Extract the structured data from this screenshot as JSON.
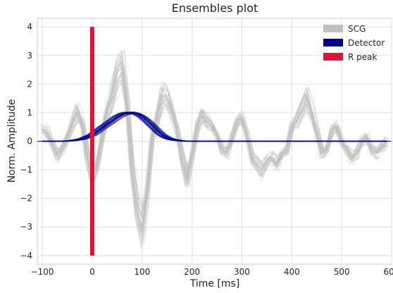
{
  "chart_data": {
    "type": "line",
    "title": "Ensembles plot",
    "xlabel": "Time [ms]",
    "ylabel": "Norm. Amplitude",
    "xlim": [
      -110,
      600
    ],
    "ylim": [
      -4.3,
      4.3
    ],
    "xticks": [
      -100,
      0,
      100,
      200,
      300,
      400,
      500,
      600
    ],
    "yticks": [
      -4,
      -3,
      -2,
      -1,
      0,
      1,
      2,
      3,
      4
    ],
    "xtick_labels": [
      "−100",
      "0",
      "100",
      "200",
      "300",
      "400",
      "500",
      "600"
    ],
    "ytick_labels": [
      "−4",
      "−3",
      "−2",
      "−1",
      "0",
      "1",
      "2",
      "3",
      "4"
    ],
    "grid": true,
    "legend_position": "top-right",
    "series": [
      {
        "name": "SCG",
        "color": "#c0c0c0",
        "style": "ensemble",
        "ensemble_count": 30,
        "x": [
          -100,
          -90,
          -80,
          -70,
          -60,
          -50,
          -40,
          -30,
          -20,
          -10,
          0,
          10,
          20,
          30,
          40,
          50,
          60,
          70,
          80,
          90,
          100,
          110,
          120,
          130,
          140,
          150,
          160,
          170,
          180,
          190,
          200,
          210,
          220,
          230,
          240,
          250,
          260,
          270,
          280,
          290,
          300,
          310,
          320,
          330,
          340,
          350,
          360,
          370,
          380,
          390,
          400,
          410,
          420,
          430,
          440,
          450,
          460,
          470,
          480,
          490,
          500,
          510,
          520,
          530,
          540,
          550,
          560,
          570,
          580,
          590
        ],
        "y": [
          0.4,
          0.3,
          -0.1,
          -0.5,
          -0.3,
          0.1,
          0.6,
          1.0,
          0.6,
          -0.5,
          -1.3,
          -0.8,
          0.2,
          1.0,
          1.6,
          2.4,
          2.6,
          1.3,
          -1.0,
          -2.4,
          -3.0,
          -1.8,
          0.1,
          0.8,
          1.6,
          1.5,
          1.0,
          0.4,
          -0.6,
          -1.3,
          -0.5,
          0.5,
          0.9,
          0.7,
          0.5,
          0.2,
          -0.3,
          -0.4,
          0.1,
          0.7,
          0.8,
          0.2,
          -0.6,
          -0.8,
          -1.0,
          -0.7,
          -0.6,
          -0.8,
          -0.4,
          -0.3,
          0.5,
          0.7,
          1.1,
          1.5,
          1.0,
          0.3,
          -0.4,
          -0.3,
          0.4,
          0.5,
          0.0,
          -0.3,
          -0.6,
          -0.4,
          0.0,
          0.1,
          -0.3,
          -0.4,
          -0.2,
          0.0
        ]
      },
      {
        "name": "Detector",
        "color": "#00008b",
        "style": "ensemble",
        "ensemble_count": 40,
        "x": [
          -100,
          -80,
          -60,
          -40,
          -20,
          0,
          10,
          20,
          30,
          40,
          50,
          60,
          70,
          80,
          90,
          100,
          110,
          120,
          130,
          140,
          150,
          160,
          170,
          180,
          190,
          200,
          220,
          250,
          300,
          350,
          400,
          450,
          500,
          550,
          590
        ],
        "y": [
          0,
          0,
          0,
          0.02,
          0.08,
          0.22,
          0.35,
          0.48,
          0.6,
          0.72,
          0.85,
          0.94,
          0.99,
          1.0,
          0.96,
          0.86,
          0.72,
          0.55,
          0.38,
          0.22,
          0.12,
          0.06,
          0.03,
          0.01,
          0,
          0,
          0,
          0,
          0,
          0,
          0,
          0,
          0,
          0,
          0
        ]
      },
      {
        "name": "R peak",
        "color": "#dc143c",
        "style": "vline",
        "x": 0,
        "y_range": [
          -4,
          4
        ]
      }
    ]
  }
}
